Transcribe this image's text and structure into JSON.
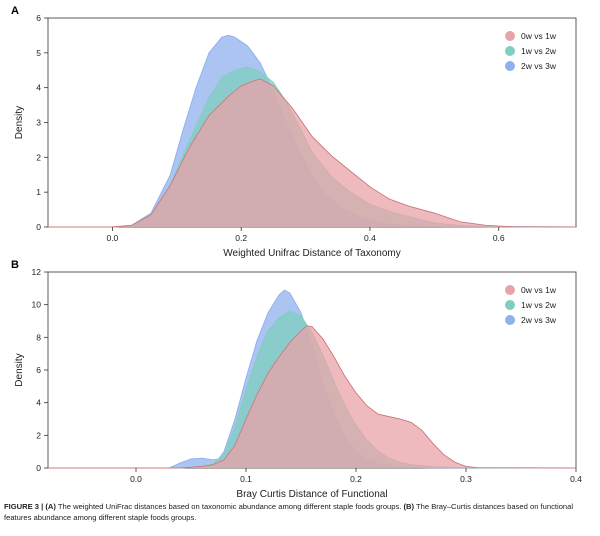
{
  "caption": {
    "label": "FIGURE 3 |",
    "a_marker": "(A)",
    "a_text": " The weighted UniFrac distances based on taxonomic abundance among different staple foods groups. ",
    "b_marker": "(B)",
    "b_text": " The Bray–Curtis distances based on functional features abundance among different staple foods groups."
  },
  "chart_data": [
    {
      "panel": "A",
      "type": "area",
      "xlabel": "Weighted Unifrac Distance of Taxonomy",
      "ylabel": "Density",
      "xlim": [
        -0.1,
        0.72
      ],
      "ylim": [
        0,
        6
      ],
      "xticks": [
        0.0,
        0.2,
        0.4,
        0.6
      ],
      "xtick_labels": [
        "0.0",
        "0.2",
        "0.4",
        "0.6"
      ],
      "yticks": [
        0,
        1,
        2,
        3,
        4,
        5,
        6
      ],
      "ytick_labels": [
        "0",
        "1",
        "2",
        "3",
        "4",
        "5",
        "6"
      ],
      "grid": false,
      "legend_position": "top-right",
      "series": [
        {
          "name": "0w vs 1w",
          "color": "#e8a3a8",
          "x": [
            -0.1,
            0.0,
            0.03,
            0.06,
            0.09,
            0.12,
            0.15,
            0.18,
            0.2,
            0.22,
            0.23,
            0.25,
            0.28,
            0.31,
            0.34,
            0.37,
            0.4,
            0.43,
            0.46,
            0.5,
            0.54,
            0.58,
            0.62,
            0.72
          ],
          "y": [
            0,
            0,
            0.05,
            0.35,
            1.2,
            2.3,
            3.2,
            3.75,
            4.05,
            4.2,
            4.25,
            4.05,
            3.4,
            2.6,
            2.05,
            1.6,
            1.15,
            0.8,
            0.6,
            0.4,
            0.15,
            0.05,
            0.01,
            0
          ]
        },
        {
          "name": "1w vs 2w",
          "color": "#7fcfbf",
          "x": [
            -0.1,
            0.0,
            0.03,
            0.06,
            0.09,
            0.12,
            0.15,
            0.17,
            0.19,
            0.21,
            0.23,
            0.25,
            0.27,
            0.29,
            0.31,
            0.34,
            0.37,
            0.4,
            0.43,
            0.46,
            0.5,
            0.54,
            0.6,
            0.72
          ],
          "y": [
            0,
            0,
            0.03,
            0.3,
            1.2,
            2.5,
            3.7,
            4.3,
            4.5,
            4.6,
            4.45,
            4.15,
            3.6,
            2.9,
            2.15,
            1.45,
            1.0,
            0.65,
            0.45,
            0.3,
            0.12,
            0.04,
            0.01,
            0
          ]
        },
        {
          "name": "2w vs 3w",
          "color": "#8fb0ee",
          "x": [
            -0.1,
            0.0,
            0.03,
            0.06,
            0.09,
            0.11,
            0.13,
            0.15,
            0.17,
            0.18,
            0.19,
            0.21,
            0.23,
            0.25,
            0.27,
            0.29,
            0.31,
            0.33,
            0.36,
            0.39,
            0.42,
            0.46,
            0.52,
            0.72
          ],
          "y": [
            0,
            0,
            0.05,
            0.4,
            1.5,
            2.8,
            4.0,
            5.0,
            5.45,
            5.5,
            5.45,
            5.2,
            4.7,
            3.9,
            3.0,
            2.2,
            1.5,
            0.95,
            0.5,
            0.25,
            0.1,
            0.03,
            0.01,
            0
          ]
        }
      ]
    },
    {
      "panel": "B",
      "type": "area",
      "xlabel": "Bray Curtis Distance of Functional",
      "ylabel": "Density",
      "xlim": [
        -0.08,
        0.4
      ],
      "ylim": [
        0,
        12
      ],
      "xticks": [
        0.0,
        0.1,
        0.2,
        0.3,
        0.4
      ],
      "xtick_labels": [
        "0.0",
        "0.1",
        "0.2",
        "0.3",
        "0.4"
      ],
      "yticks": [
        0,
        2,
        4,
        6,
        8,
        10,
        12
      ],
      "ytick_labels": [
        "0",
        "2",
        "4",
        "6",
        "8",
        "10",
        "12"
      ],
      "grid": false,
      "legend_position": "top-right",
      "series": [
        {
          "name": "0w vs 1w",
          "color": "#e8a3a8",
          "x": [
            -0.08,
            0.04,
            0.06,
            0.07,
            0.08,
            0.09,
            0.1,
            0.11,
            0.12,
            0.13,
            0.14,
            0.15,
            0.155,
            0.16,
            0.17,
            0.18,
            0.19,
            0.2,
            0.21,
            0.22,
            0.23,
            0.24,
            0.25,
            0.26,
            0.27,
            0.28,
            0.29,
            0.3,
            0.31,
            0.4
          ],
          "y": [
            0,
            0,
            0.1,
            0.2,
            0.5,
            1.4,
            3.0,
            4.5,
            5.8,
            6.8,
            7.7,
            8.4,
            8.7,
            8.65,
            7.9,
            6.8,
            5.6,
            4.6,
            3.8,
            3.3,
            3.15,
            3.0,
            2.8,
            2.3,
            1.5,
            0.8,
            0.35,
            0.1,
            0.02,
            0
          ]
        },
        {
          "name": "1w vs 2w",
          "color": "#7fcfbf",
          "x": [
            -0.08,
            0.04,
            0.06,
            0.07,
            0.08,
            0.09,
            0.1,
            0.11,
            0.12,
            0.13,
            0.14,
            0.15,
            0.16,
            0.17,
            0.18,
            0.19,
            0.2,
            0.21,
            0.22,
            0.23,
            0.24,
            0.25,
            0.27,
            0.3,
            0.4
          ],
          "y": [
            0,
            0,
            0.1,
            0.25,
            0.8,
            2.5,
            4.8,
            6.8,
            8.4,
            9.2,
            9.6,
            9.3,
            8.3,
            6.9,
            5.3,
            3.8,
            2.6,
            1.7,
            1.05,
            0.6,
            0.35,
            0.2,
            0.08,
            0.02,
            0
          ]
        },
        {
          "name": "2w vs 3w",
          "color": "#8fb0ee",
          "x": [
            -0.08,
            0.03,
            0.04,
            0.05,
            0.06,
            0.07,
            0.075,
            0.08,
            0.09,
            0.1,
            0.11,
            0.12,
            0.13,
            0.135,
            0.14,
            0.15,
            0.16,
            0.17,
            0.18,
            0.19,
            0.2,
            0.21,
            0.22,
            0.24,
            0.27,
            0.4
          ],
          "y": [
            0,
            0,
            0.3,
            0.55,
            0.6,
            0.5,
            0.55,
            1.0,
            3.0,
            5.5,
            7.8,
            9.5,
            10.6,
            10.9,
            10.7,
            9.5,
            7.5,
            5.2,
            3.3,
            1.9,
            1.0,
            0.5,
            0.25,
            0.05,
            0.01,
            0
          ]
        }
      ]
    }
  ]
}
